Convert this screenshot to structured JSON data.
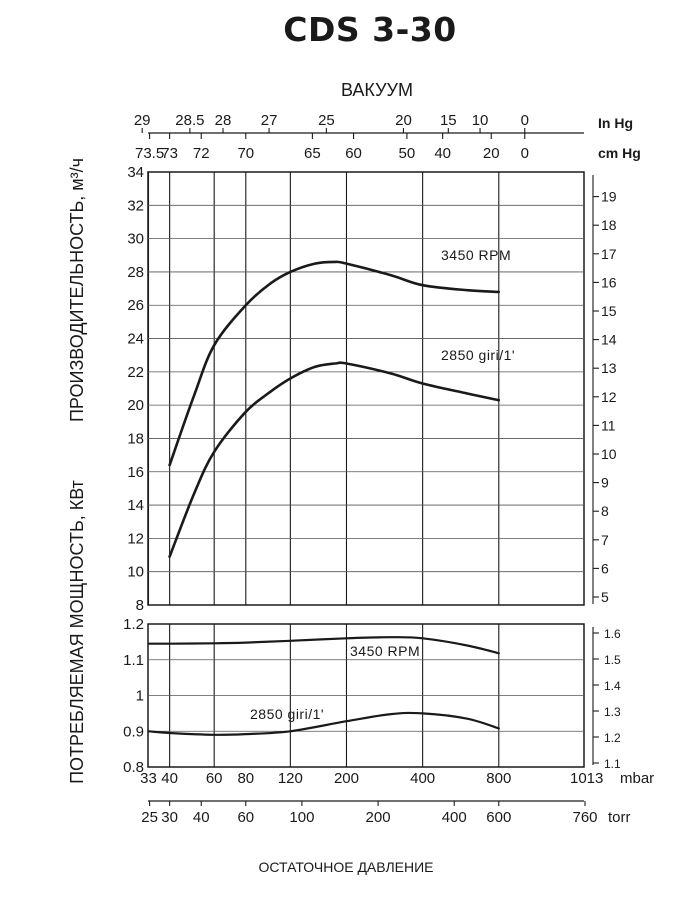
{
  "title": "CDS 3-30",
  "chart_data": [
    {
      "type": "line",
      "panel": "capacity",
      "x_scale": "log",
      "xlabel": "ОСТАТОЧНОЕ ДАВЛЕНИЕ",
      "x_unit_primary": "mbar",
      "x_unit_secondary": "torr",
      "top_axis_label": "ВАКУУМ",
      "top_unit_inhg": "In Hg",
      "top_unit_cmhg": "cm Hg",
      "ylabel": "ПРОИЗВОДИТЕЛЬНОСТЬ, м³/ч",
      "ylim": [
        8,
        34
      ],
      "yticks": [
        "8",
        "10",
        "12",
        "14",
        "16",
        "18",
        "20",
        "22",
        "24",
        "26",
        "28",
        "30",
        "32",
        "34"
      ],
      "y2ticks": [
        "5",
        "6",
        "7",
        "8",
        "9",
        "10",
        "11",
        "12",
        "13",
        "14",
        "15",
        "16",
        "17",
        "18",
        "19"
      ],
      "series": [
        {
          "name": "3450 RPM",
          "x": [
            40,
            50,
            60,
            80,
            100,
            120,
            150,
            180,
            200,
            300,
            400,
            600,
            800
          ],
          "y": [
            16.4,
            20.6,
            23.6,
            26.0,
            27.3,
            28.0,
            28.5,
            28.6,
            28.5,
            27.8,
            27.2,
            26.9,
            26.8
          ]
        },
        {
          "name": "2850 giri/1'",
          "x": [
            40,
            50,
            60,
            80,
            100,
            120,
            150,
            180,
            200,
            300,
            400,
            600,
            800
          ],
          "y": [
            10.9,
            14.7,
            17.2,
            19.6,
            20.8,
            21.6,
            22.3,
            22.5,
            22.5,
            21.9,
            21.3,
            20.7,
            20.3
          ]
        }
      ]
    },
    {
      "type": "line",
      "panel": "power",
      "x_scale": "log",
      "ylabel": "ПОТРЕБЛЯЕМАЯ МОЩНОСТЬ, КВт",
      "ylim": [
        0.8,
        1.2
      ],
      "yticks": [
        "0.8",
        "0.9",
        "1",
        "1.1",
        "1.2"
      ],
      "y2ticks": [
        "1.1",
        "1.2",
        "1.3",
        "1.4",
        "1.5",
        "1.6"
      ],
      "x_ticks_mbar": [
        "33",
        "40",
        "60",
        "80",
        "120",
        "200",
        "400",
        "800",
        "1013"
      ],
      "x_ticks_torr": [
        "25",
        "30",
        "40",
        "60",
        "100",
        "200",
        "400",
        "600",
        "760"
      ],
      "top_ticks_inhg": [
        "29",
        "28.5",
        "28",
        "27",
        "25",
        "20",
        "15",
        "10",
        "0"
      ],
      "top_ticks_cmhg": [
        "73.5",
        "73",
        "72",
        "70",
        "65",
        "60",
        "50",
        "40",
        "20",
        "0"
      ],
      "series": [
        {
          "name": "3450 RPM",
          "x": [
            33,
            40,
            60,
            80,
            120,
            200,
            300,
            400,
            600,
            800
          ],
          "y": [
            1.145,
            1.145,
            1.146,
            1.148,
            1.153,
            1.16,
            1.163,
            1.16,
            1.14,
            1.118
          ]
        },
        {
          "name": "2850 giri/1'",
          "x": [
            33,
            40,
            60,
            80,
            120,
            200,
            300,
            400,
            600,
            800
          ],
          "y": [
            0.9,
            0.895,
            0.89,
            0.892,
            0.9,
            0.928,
            0.948,
            0.95,
            0.935,
            0.908
          ]
        }
      ]
    }
  ],
  "labels": {
    "upper_3450": "3450 RPM",
    "upper_2850": "2850 giri/1'",
    "lower_3450": "3450 RPM",
    "lower_2850": "2850 giri/1'"
  }
}
